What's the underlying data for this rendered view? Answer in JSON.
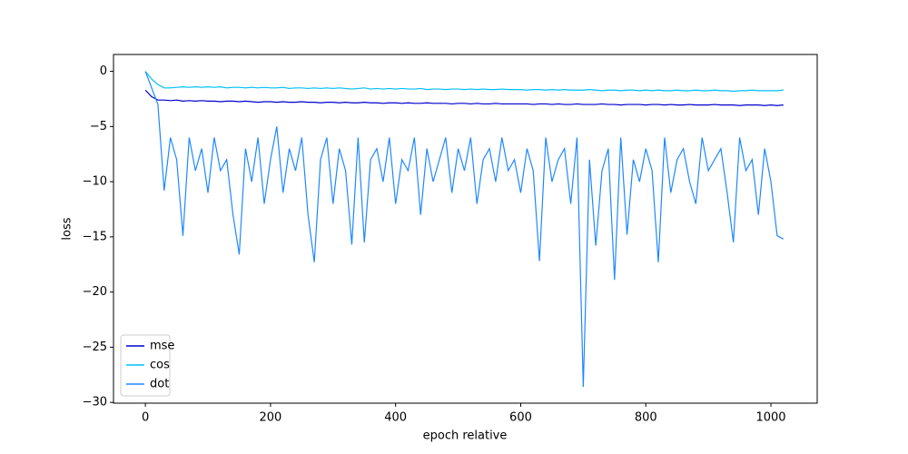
{
  "chart_data": {
    "type": "line",
    "xlabel": "epoch relative",
    "ylabel": "loss",
    "x": [
      0,
      10,
      20,
      30,
      40,
      50,
      60,
      70,
      80,
      90,
      100,
      110,
      120,
      130,
      140,
      150,
      160,
      170,
      180,
      190,
      200,
      210,
      220,
      230,
      240,
      250,
      260,
      270,
      280,
      290,
      300,
      310,
      320,
      330,
      340,
      350,
      360,
      370,
      380,
      390,
      400,
      410,
      420,
      430,
      440,
      450,
      460,
      470,
      480,
      490,
      500,
      510,
      520,
      530,
      540,
      550,
      560,
      570,
      580,
      590,
      600,
      610,
      620,
      630,
      640,
      650,
      660,
      670,
      680,
      690,
      700,
      710,
      720,
      730,
      740,
      750,
      760,
      770,
      780,
      790,
      800,
      810,
      820,
      830,
      840,
      850,
      860,
      870,
      880,
      890,
      900,
      910,
      920,
      930,
      940,
      950,
      960,
      970,
      980,
      990,
      1000,
      1010,
      1020
    ],
    "series": [
      {
        "name": "mse",
        "color": "#0000cd",
        "values": [
          -1.7,
          -2.3,
          -2.6,
          -2.6,
          -2.65,
          -2.6,
          -2.7,
          -2.65,
          -2.7,
          -2.65,
          -2.7,
          -2.7,
          -2.75,
          -2.7,
          -2.7,
          -2.75,
          -2.7,
          -2.75,
          -2.8,
          -2.75,
          -2.75,
          -2.8,
          -2.75,
          -2.8,
          -2.8,
          -2.75,
          -2.8,
          -2.8,
          -2.85,
          -2.8,
          -2.8,
          -2.85,
          -2.8,
          -2.85,
          -2.85,
          -2.8,
          -2.85,
          -2.85,
          -2.9,
          -2.85,
          -2.85,
          -2.9,
          -2.85,
          -2.9,
          -2.9,
          -2.85,
          -2.9,
          -2.9,
          -2.9,
          -2.95,
          -2.9,
          -2.9,
          -2.95,
          -2.9,
          -2.95,
          -2.95,
          -2.9,
          -2.95,
          -2.95,
          -2.95,
          -2.95,
          -2.95,
          -3.0,
          -2.95,
          -2.95,
          -3.0,
          -2.95,
          -3.0,
          -3.0,
          -2.95,
          -3.0,
          -3.0,
          -3.0,
          -2.95,
          -3.0,
          -3.0,
          -3.05,
          -3.0,
          -3.0,
          -3.0,
          -3.05,
          -3.0,
          -3.0,
          -3.05,
          -3.0,
          -3.05,
          -3.05,
          -3.0,
          -3.05,
          -3.05,
          -3.05,
          -3.0,
          -3.05,
          -3.05,
          -3.05,
          -3.1,
          -3.05,
          -3.05,
          -3.05,
          -3.1,
          -3.05,
          -3.1,
          -3.05
        ]
      },
      {
        "name": "cos",
        "color": "#00bfff",
        "values": [
          0,
          -0.7,
          -1.2,
          -1.5,
          -1.5,
          -1.45,
          -1.4,
          -1.45,
          -1.4,
          -1.45,
          -1.4,
          -1.45,
          -1.4,
          -1.5,
          -1.45,
          -1.45,
          -1.5,
          -1.45,
          -1.5,
          -1.45,
          -1.5,
          -1.5,
          -1.45,
          -1.55,
          -1.5,
          -1.5,
          -1.55,
          -1.5,
          -1.55,
          -1.5,
          -1.55,
          -1.5,
          -1.55,
          -1.6,
          -1.55,
          -1.5,
          -1.6,
          -1.55,
          -1.6,
          -1.55,
          -1.6,
          -1.55,
          -1.6,
          -1.6,
          -1.55,
          -1.65,
          -1.6,
          -1.6,
          -1.65,
          -1.6,
          -1.6,
          -1.65,
          -1.6,
          -1.65,
          -1.6,
          -1.65,
          -1.65,
          -1.6,
          -1.65,
          -1.65,
          -1.65,
          -1.7,
          -1.65,
          -1.65,
          -1.7,
          -1.65,
          -1.7,
          -1.65,
          -1.7,
          -1.7,
          -1.7,
          -1.65,
          -1.7,
          -1.75,
          -1.7,
          -1.7,
          -1.75,
          -1.7,
          -1.7,
          -1.75,
          -1.7,
          -1.75,
          -1.7,
          -1.75,
          -1.75,
          -1.7,
          -1.75,
          -1.75,
          -1.7,
          -1.75,
          -1.75,
          -1.7,
          -1.75,
          -1.75,
          -1.8,
          -1.75,
          -1.75,
          -1.7,
          -1.75,
          -1.75,
          -1.75,
          -1.75,
          -1.7
        ]
      },
      {
        "name": "dot",
        "color": "#1e88ff",
        "values": [
          0,
          -1.5,
          -3,
          -10.8,
          -6,
          -8,
          -14.9,
          -6,
          -9,
          -7,
          -11,
          -6,
          -9,
          -8,
          -13,
          -16.6,
          -7,
          -10,
          -6,
          -12,
          -8,
          -5,
          -11,
          -7,
          -9,
          -6,
          -13,
          -17.3,
          -8,
          -6,
          -12,
          -7,
          -9,
          -15.7,
          -6,
          -15.5,
          -8,
          -7,
          -10,
          -6,
          -12,
          -8,
          -9,
          -6,
          -13,
          -7,
          -10,
          -8,
          -6,
          -11,
          -7,
          -9,
          -6,
          -12,
          -8,
          -7,
          -10,
          -6,
          -9,
          -8,
          -11,
          -7,
          -9,
          -17.2,
          -6,
          -10,
          -8,
          -7,
          -12,
          -6,
          -28.6,
          -8,
          -15.8,
          -9,
          -7,
          -18.9,
          -6,
          -14.8,
          -8,
          -10,
          -7,
          -9,
          -17.3,
          -6,
          -11,
          -8,
          -7,
          -10,
          -12,
          -6,
          -9,
          -8,
          -7,
          -11,
          -15.5,
          -6,
          -9,
          -8,
          -13,
          -7,
          -10,
          -14.9,
          -15.2
        ]
      }
    ],
    "xlim": [
      -51,
      1074
    ],
    "ylim": [
      -30.07,
      1.53
    ],
    "xticks": [
      0,
      200,
      400,
      600,
      800,
      1000
    ],
    "yticks": [
      0,
      {
        "value": -5,
        "label": "−5"
      },
      {
        "value": -10,
        "label": "−10"
      },
      {
        "value": -15,
        "label": "−15"
      },
      {
        "value": -20,
        "label": "−20"
      },
      {
        "value": -25,
        "label": "−25"
      },
      {
        "value": -30,
        "label": "−30"
      }
    ],
    "legend": "lower left"
  }
}
